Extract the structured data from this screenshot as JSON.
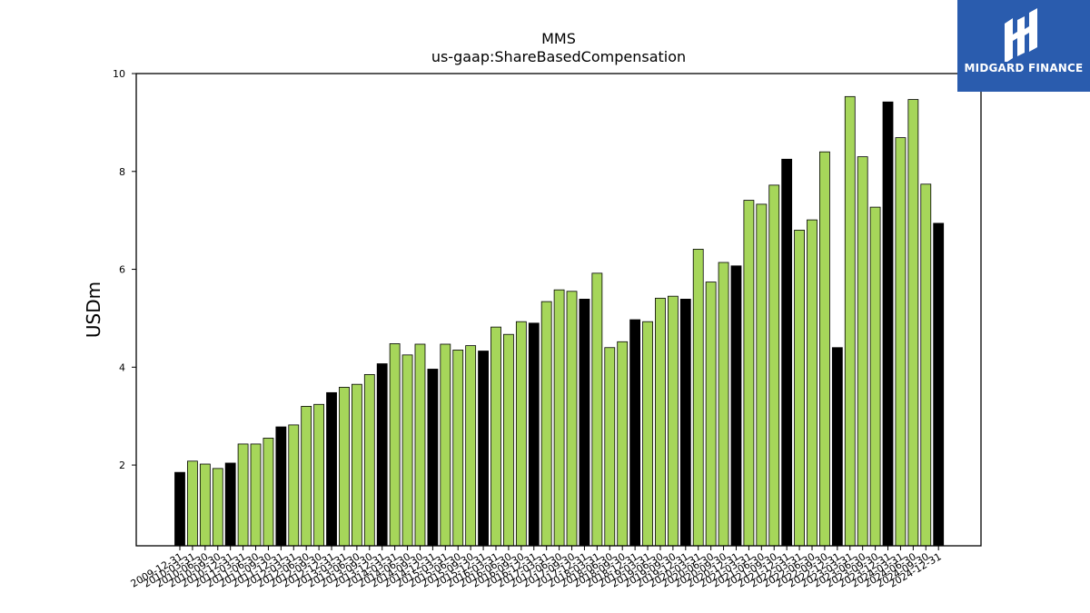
{
  "logo": {
    "text": "MIDGARD FINANCE",
    "icon": "midgard-finance-logo-icon",
    "background": "#2a5cae"
  },
  "colors": {
    "quarter_bar": "#a6d65a",
    "year_end_bar": "#000000"
  },
  "chart_data": {
    "type": "bar",
    "title": "MMS",
    "subtitle": "us-gaap:ShareBasedCompensation",
    "xlabel": "",
    "ylabel": "USDm",
    "ylim": [
      0.35,
      10
    ],
    "yticks": [
      2,
      4,
      6,
      8,
      10
    ],
    "grid": false,
    "legend": "none",
    "series": [
      {
        "values": [
          1.85,
          2.08,
          2.02,
          1.93,
          2.04,
          2.43,
          2.43,
          2.55,
          2.78,
          2.82,
          3.2,
          3.24,
          3.48,
          3.59,
          3.65,
          3.85,
          4.07,
          4.48,
          4.25,
          4.47,
          3.96,
          4.47,
          4.35,
          4.44,
          4.33,
          4.82,
          4.67,
          4.93,
          4.9,
          5.34,
          5.58,
          5.55,
          5.39,
          5.92,
          4.4,
          4.52,
          4.97,
          4.93,
          5.41,
          5.45,
          5.39,
          6.41,
          5.74,
          6.14,
          6.07,
          7.41,
          7.33,
          7.72,
          8.25,
          6.8,
          7.01,
          8.4,
          4.4,
          9.53,
          8.3,
          7.27,
          9.42,
          8.69,
          9.47,
          7.74,
          6.94
        ],
        "year_end": [
          true,
          false,
          false,
          false,
          true,
          false,
          false,
          false,
          true,
          false,
          false,
          false,
          true,
          false,
          false,
          false,
          true,
          false,
          false,
          false,
          true,
          false,
          false,
          false,
          true,
          false,
          false,
          false,
          true,
          false,
          false,
          false,
          true,
          false,
          false,
          false,
          true,
          false,
          false,
          false,
          true,
          false,
          false,
          false,
          true,
          false,
          false,
          false,
          true,
          false,
          false,
          false,
          true,
          false,
          false,
          false,
          true,
          false,
          false,
          false,
          true
        ]
      }
    ],
    "categories": [
      "2009-12-31",
      "2010-03-31",
      "2010-06-30",
      "2010-09-30",
      "2010-12-31",
      "2011-03-31",
      "2011-06-30",
      "2011-09-30",
      "2011-12-31",
      "2012-03-31",
      "2012-06-30",
      "2012-09-30",
      "2012-12-31",
      "2013-03-31",
      "2013-06-30",
      "2013-09-30",
      "2013-12-31",
      "2014-03-31",
      "2014-06-30",
      "2014-09-30",
      "2014-12-31",
      "2015-03-31",
      "2015-06-30",
      "2015-09-30",
      "2015-12-31",
      "2016-03-31",
      "2016-06-30",
      "2016-09-30",
      "2016-12-31",
      "2017-03-31",
      "2017-06-30",
      "2017-09-30",
      "2017-12-31",
      "2018-03-31",
      "2018-06-30",
      "2018-09-30",
      "2018-12-31",
      "2019-03-31",
      "2019-06-30",
      "2019-09-30",
      "2019-12-31",
      "2020-03-31",
      "2020-06-30",
      "2020-09-30",
      "2020-12-31",
      "2021-03-31",
      "2021-06-30",
      "2021-09-30",
      "2021-12-31",
      "2022-03-31",
      "2022-06-30",
      "2022-09-30",
      "2022-12-31",
      "2023-03-31",
      "2023-06-30",
      "2023-09-30",
      "2023-12-31",
      "2024-03-31",
      "2024-06-30",
      "2024-09-30",
      "2024-12-31"
    ]
  }
}
